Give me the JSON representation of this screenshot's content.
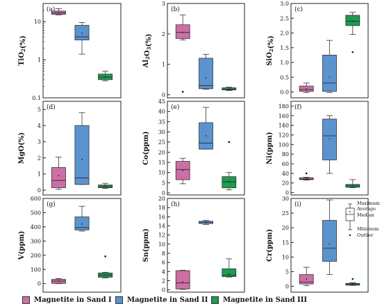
{
  "legend": [
    {
      "label": "Magnetite in Sand I",
      "color": "#cd6fa4"
    },
    {
      "label": "Magnetite in Sand II",
      "color": "#5b93cf"
    },
    {
      "label": "Magnetite in Sand III",
      "color": "#1f9a50"
    }
  ],
  "chart_data": [
    {
      "type": "box",
      "panel": "(a)",
      "ylabel": "TiO2(%)",
      "scale": "log",
      "ylim": [
        0.1,
        30
      ],
      "ticks": [
        0.1,
        1,
        10
      ],
      "tick_labels": [
        "0.1",
        "1",
        "10"
      ],
      "series": [
        {
          "group": "Magnetite in Sand I",
          "min": 15,
          "q1": 15.5,
          "median": 17,
          "q3": 19,
          "max": 22,
          "mean": 17,
          "outliers": []
        },
        {
          "group": "Magnetite in Sand II",
          "min": 1.4,
          "q1": 3.3,
          "median": 4,
          "q3": 8,
          "max": 9.5,
          "mean": 5,
          "outliers": []
        },
        {
          "group": "Magnetite in Sand III",
          "min": 0.28,
          "q1": 0.3,
          "median": 0.35,
          "q3": 0.42,
          "max": 0.5,
          "mean": 0.36,
          "outliers": []
        }
      ]
    },
    {
      "type": "box",
      "panel": "(b)",
      "ylabel": "Al2O3(%)",
      "scale": "linear",
      "ylim": [
        -0.1,
        3
      ],
      "ticks": [
        0,
        1,
        2,
        3
      ],
      "tick_labels": [
        "0",
        "1",
        "2",
        "3"
      ],
      "series": [
        {
          "group": "Magnetite in Sand I",
          "min": 1.8,
          "q1": 1.85,
          "median": 2.05,
          "q3": 2.3,
          "max": 2.62,
          "mean": 2.05,
          "outliers": [
            0.1
          ]
        },
        {
          "group": "Magnetite in Sand II",
          "min": 0.18,
          "q1": 0.2,
          "median": 0.3,
          "q3": 1.2,
          "max": 1.33,
          "mean": 0.55,
          "outliers": []
        },
        {
          "group": "Magnetite in Sand III",
          "min": 0.14,
          "q1": 0.16,
          "median": 0.18,
          "q3": 0.23,
          "max": 0.25,
          "mean": 0.19,
          "outliers": []
        }
      ]
    },
    {
      "type": "box",
      "panel": "(c)",
      "ylabel": "SiO2(%)",
      "scale": "linear",
      "ylim": [
        -0.2,
        3.0
      ],
      "ticks": [
        0,
        0.5,
        1.0,
        1.5,
        2.0,
        2.5,
        3.0
      ],
      "tick_labels": [
        "0.0",
        "0.5",
        "1.0",
        "1.5",
        "2.0",
        "2.5",
        "3.0"
      ],
      "series": [
        {
          "group": "Magnetite in Sand I",
          "min": -0.02,
          "q1": 0.02,
          "median": 0.08,
          "q3": 0.2,
          "max": 0.3,
          "mean": 0.1,
          "outliers": []
        },
        {
          "group": "Magnetite in Sand II",
          "min": -0.02,
          "q1": 0.02,
          "median": 0.3,
          "q3": 1.25,
          "max": 1.75,
          "mean": 0.5,
          "outliers": []
        },
        {
          "group": "Magnetite in Sand III",
          "min": 1.95,
          "q1": 2.25,
          "median": 2.4,
          "q3": 2.6,
          "max": 2.7,
          "mean": 2.4,
          "outliers": [
            1.35
          ]
        }
      ]
    },
    {
      "type": "box",
      "panel": "(d)",
      "ylabel": "MgO(%)",
      "scale": "linear",
      "ylim": [
        -0.3,
        5.5
      ],
      "ticks": [
        0,
        1,
        2,
        3,
        4,
        5
      ],
      "tick_labels": [
        "0",
        "1",
        "2",
        "3",
        "4",
        "5"
      ],
      "series": [
        {
          "group": "Magnetite in Sand I",
          "min": 0.05,
          "q1": 0.15,
          "median": 0.6,
          "q3": 1.4,
          "max": 2.05,
          "mean": 0.9,
          "outliers": []
        },
        {
          "group": "Magnetite in Sand II",
          "min": 0.35,
          "q1": 0.35,
          "median": 0.75,
          "q3": 4.0,
          "max": 4.8,
          "mean": 1.9,
          "outliers": []
        },
        {
          "group": "Magnetite in Sand III",
          "min": 0.1,
          "q1": 0.15,
          "median": 0.22,
          "q3": 0.32,
          "max": 0.42,
          "mean": 0.25,
          "outliers": []
        }
      ]
    },
    {
      "type": "box",
      "panel": "(e)",
      "ylabel": "Co(ppm)",
      "scale": "linear",
      "ylim": [
        -1,
        45
      ],
      "ticks": [
        0,
        5,
        10,
        15,
        20,
        25,
        30,
        35,
        40,
        45
      ],
      "tick_labels": [
        "0",
        "5",
        "10",
        "15",
        "20",
        "25",
        "30",
        "35",
        "40",
        "45"
      ],
      "series": [
        {
          "group": "Magnetite in Sand I",
          "min": 4.5,
          "q1": 6.5,
          "median": 11.5,
          "q3": 15.5,
          "max": 17,
          "mean": 11,
          "outliers": []
        },
        {
          "group": "Magnetite in Sand II",
          "min": 21.5,
          "q1": 21.5,
          "median": 24.5,
          "q3": 34.5,
          "max": 42,
          "mean": 28,
          "outliers": []
        },
        {
          "group": "Magnetite in Sand III",
          "min": 1.5,
          "q1": 2.5,
          "median": 5.5,
          "q3": 8,
          "max": 10,
          "mean": 5.5,
          "outliers": [
            25
          ]
        }
      ]
    },
    {
      "type": "box",
      "panel": "(f)",
      "ylabel": "Ni(ppm)",
      "scale": "linear",
      "ylim": [
        -5,
        190
      ],
      "ticks": [
        0,
        20,
        40,
        60,
        80,
        100,
        120,
        140,
        160,
        180
      ],
      "tick_labels": [
        "0",
        "20",
        "40",
        "60",
        "80",
        "100",
        "120",
        "140",
        "160",
        "180"
      ],
      "series": [
        {
          "group": "Magnetite in Sand I",
          "min": 26,
          "q1": 27,
          "median": 28,
          "q3": 31,
          "max": 32,
          "mean": 29,
          "outliers": [
            40
          ]
        },
        {
          "group": "Magnetite in Sand II",
          "min": 40,
          "q1": 68,
          "median": 118,
          "q3": 153,
          "max": 160,
          "mean": 112,
          "outliers": []
        },
        {
          "group": "Magnetite in Sand III",
          "min": 10,
          "q1": 11,
          "median": 14,
          "q3": 17,
          "max": 27,
          "mean": 14,
          "outliers": []
        }
      ]
    },
    {
      "type": "box",
      "panel": "(g)",
      "ylabel": "V(ppm)",
      "scale": "linear",
      "ylim": [
        -60,
        600
      ],
      "ticks": [
        0,
        100,
        200,
        300,
        400,
        500,
        600
      ],
      "tick_labels": [
        "0",
        "100",
        "200",
        "300",
        "400",
        "500",
        "600"
      ],
      "series": [
        {
          "group": "Magnetite in Sand I",
          "min": 0,
          "q1": 2,
          "median": 18,
          "q3": 30,
          "max": 35,
          "mean": 18,
          "outliers": []
        },
        {
          "group": "Magnetite in Sand II",
          "min": 370,
          "q1": 378,
          "median": 395,
          "q3": 470,
          "max": 545,
          "mean": 420,
          "outliers": []
        },
        {
          "group": "Magnetite in Sand III",
          "min": 40,
          "q1": 45,
          "median": 60,
          "q3": 75,
          "max": 80,
          "mean": 60,
          "outliers": [
            192
          ]
        }
      ]
    },
    {
      "type": "box",
      "panel": "(h)",
      "ylabel": "Sn(ppm)",
      "scale": "linear",
      "ylim": [
        -0.5,
        20
      ],
      "ticks": [
        0,
        2,
        4,
        6,
        8,
        10,
        12,
        14,
        16,
        18,
        20
      ],
      "tick_labels": [
        "0",
        "2",
        "4",
        "6",
        "8",
        "10",
        "12",
        "14",
        "16",
        "18",
        "20"
      ],
      "series": [
        {
          "group": "Magnetite in Sand I",
          "min": 0.1,
          "q1": 0.2,
          "median": 1.5,
          "q3": 4.2,
          "max": 4.3,
          "mean": 1.8,
          "outliers": []
        },
        {
          "group": "Magnetite in Sand II",
          "min": 14.3,
          "q1": 14.5,
          "median": 14.8,
          "q3": 15.0,
          "max": 15.2,
          "mean": 14.8,
          "outliers": []
        },
        {
          "group": "Magnetite in Sand III",
          "min": 2.8,
          "q1": 2.9,
          "median": 3.2,
          "q3": 4.6,
          "max": 6.8,
          "mean": 3.5,
          "outliers": []
        }
      ]
    },
    {
      "type": "box",
      "panel": "(i)",
      "ylabel": "Cr(ppm)",
      "scale": "linear",
      "ylim": [
        -2,
        30
      ],
      "ticks": [
        0,
        5,
        10,
        15,
        20,
        25,
        30
      ],
      "tick_labels": [
        "0",
        "5",
        "10",
        "15",
        "20",
        "25",
        "30"
      ],
      "series": [
        {
          "group": "Magnetite in Sand I",
          "min": 0.2,
          "q1": 0.8,
          "median": 1.5,
          "q3": 4.0,
          "max": 6.5,
          "mean": 2.5,
          "outliers": []
        },
        {
          "group": "Magnetite in Sand II",
          "min": 4.0,
          "q1": 8.5,
          "median": 13,
          "q3": 22.5,
          "max": 29.5,
          "mean": 14.5,
          "outliers": []
        },
        {
          "group": "Magnetite in Sand III",
          "min": 0.3,
          "q1": 0.4,
          "median": 0.6,
          "q3": 1.0,
          "max": 1.2,
          "mean": 0.7,
          "outliers": [
            2.5
          ]
        }
      ]
    }
  ],
  "key": {
    "labels": [
      "Maximum",
      "Average",
      "Median",
      "Minimum",
      "Outlier"
    ]
  }
}
